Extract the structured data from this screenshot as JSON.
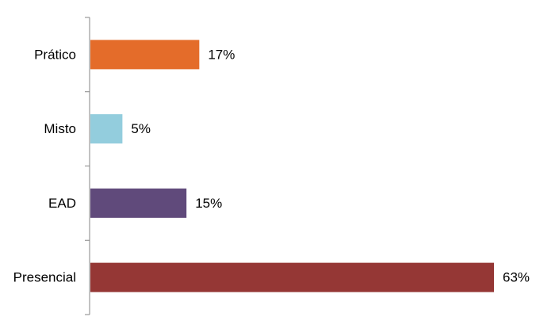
{
  "chart_data": {
    "type": "bar",
    "orientation": "horizontal",
    "title": "",
    "xlabel": "",
    "ylabel": "",
    "categories": [
      "Prático",
      "Misto",
      "EAD",
      "Presencial"
    ],
    "values": [
      17,
      5,
      15,
      63
    ],
    "value_labels": [
      "17%",
      "5%",
      "15%",
      "63%"
    ],
    "colors": [
      "#E46C2A",
      "#93CDDD",
      "#604A7B",
      "#953735"
    ],
    "xlim": [
      0,
      63
    ],
    "grid": false,
    "legend": "none"
  }
}
